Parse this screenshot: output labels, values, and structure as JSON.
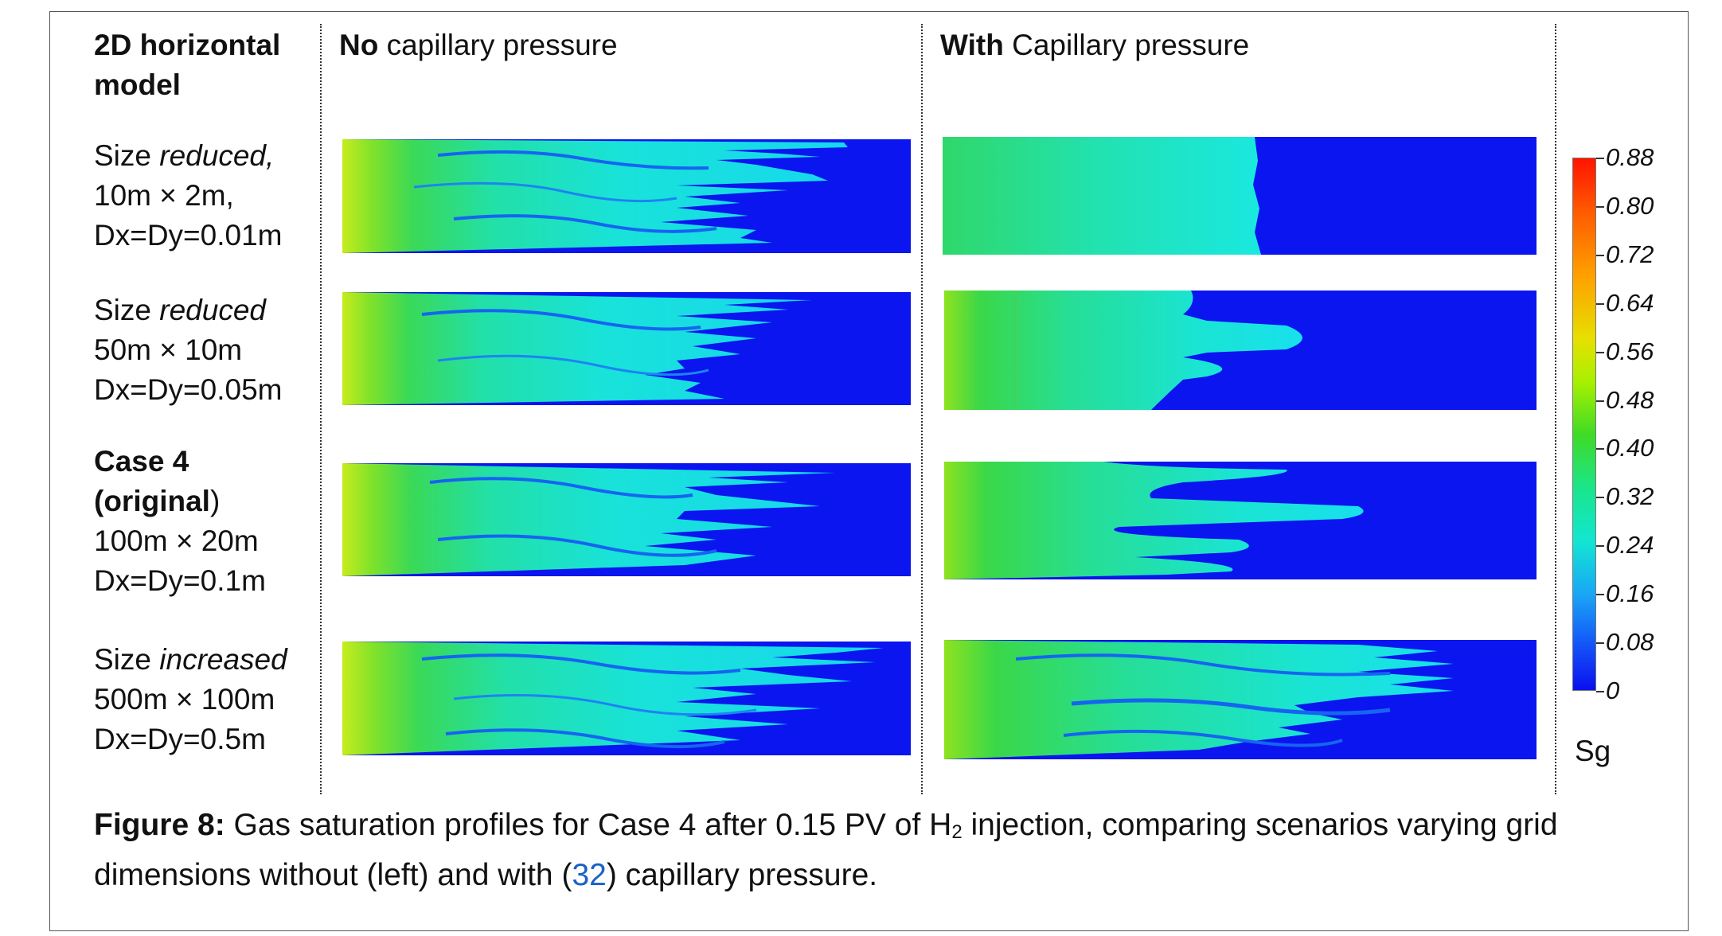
{
  "headers": {
    "model_line1": "2D horizontal",
    "model_line2": "model",
    "no_bold": "No",
    "no_rest": " capillary pressure",
    "with_bold": "With",
    "with_rest": " Capillary pressure"
  },
  "rows": [
    {
      "l1a": "Size ",
      "l1b": "reduced,",
      "l2": "10m × 2m,",
      "l3": "Dx=Dy=0.01m"
    },
    {
      "l1a": "Size ",
      "l1b": "reduced",
      "l2": "50m × 10m",
      "l3": "Dx=Dy=0.05m"
    },
    {
      "l1a": "Case 4",
      "l2a": "(original",
      "l2b": ")",
      "l3": "100m × 20m",
      "l4": "Dx=Dy=0.1m"
    },
    {
      "l1a": "Size ",
      "l1b": "increased",
      "l2": "500m × 100m",
      "l3": "Dx=Dy=0.5m"
    }
  ],
  "colorbar": {
    "title": "Sg",
    "ticks": [
      "0.88",
      "0.80",
      "0.72",
      "0.64",
      "0.56",
      "0.48",
      "0.40",
      "0.32",
      "0.24",
      "0.16",
      "0.08",
      "0"
    ],
    "colors": {
      "max": "#ff1400",
      "mid": "#3edb26",
      "low": "#12e6d2",
      "min": "#0a10ee"
    }
  },
  "caption": {
    "label": "Figure 8:",
    "text1": " Gas saturation profiles for Case 4 after 0.15 PV of H",
    "sub": "2",
    "text2": " injection, comparing scenarios varying grid dimensions without (left) and with (",
    "cite": "32",
    "text3": ") capillary pressure."
  }
}
